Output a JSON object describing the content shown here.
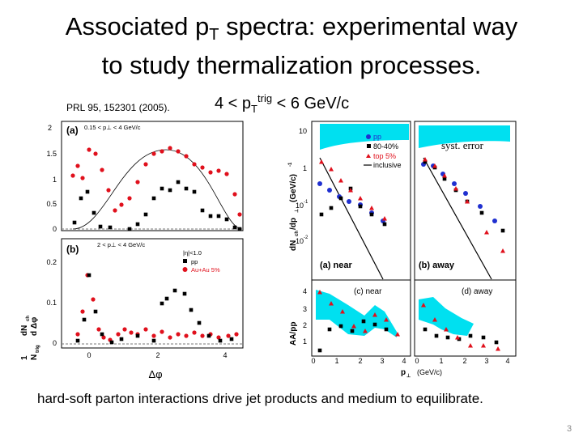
{
  "slide": {
    "title_line1_pre": "Associated p",
    "title_sub": "T",
    "title_line1_post": " spectra: experimental way",
    "title_line2": "to study thermalization processes.",
    "citation": "PRL 95, 152301 (2005).",
    "range_pre": "4 < p",
    "range_sub": "T",
    "range_sup": "trig",
    "range_post": " < 6 GeV/c",
    "caption": "hard-soft parton interactions drive jet products and medium to equilibrate.",
    "page_number": "3"
  },
  "colors": {
    "pp": "#000000",
    "auau": "#e0101c",
    "central": "#e0101c",
    "peripheral": "#000000",
    "pp_blue": "#2030d0",
    "syst_band": "#00e0f0"
  },
  "left_figure": {
    "y_axis_label_top": "dN",
    "y_axis_label_sub": "ch",
    "y_axis_label_den": "d Δφ",
    "y_axis_label_prefix_num": "1",
    "y_axis_label_prefix_den": "N",
    "y_axis_label_prefix_sub": "trig",
    "x_axis_label": "Δφ",
    "x_ticks": [
      "0",
      "2",
      "4"
    ],
    "panel_a": {
      "label": "(a)",
      "cut": "0.15 < p⊥ < 4 GeV/c",
      "y_ticks": [
        "2",
        "1.5",
        "1",
        "0.5",
        "0"
      ]
    },
    "panel_b": {
      "label": "(b)",
      "cut": "2 < p⊥ < 4 GeV/c",
      "eta_cut": "|η|<1.0",
      "legend_pp": "pp",
      "legend_auau": "Au+Au 5%",
      "y_ticks": [
        "0.2",
        "0.1",
        "0"
      ]
    }
  },
  "right_figure": {
    "y_axis_upper": "dN",
    "y_axis_upper_sub": "ch",
    "y_axis_upper_rest": "/dp",
    "y_axis_upper_rest_sub": "⊥",
    "y_axis_upper_units": "(GeV/c)",
    "y_axis_upper_units_sup": "-1",
    "y_axis_lower": "AA/pp",
    "x_axis_label_pre": "p",
    "x_axis_label_sub": "⊥",
    "x_axis_label_post": "(GeV/c)",
    "x_ticks_left": [
      "0",
      "1",
      "2",
      "3",
      "4"
    ],
    "x_ticks_right": [
      "0",
      "1",
      "2",
      "3",
      "4"
    ],
    "upper_y_ticks": [
      "10",
      "1",
      "10",
      "10"
    ],
    "upper_y_tick_sups": [
      "",
      "",
      "-1",
      "-2"
    ],
    "lower_y_ticks": [
      "4",
      "3",
      "2",
      "1"
    ],
    "legend": {
      "pp": "pp",
      "peripheral": "80-40%",
      "central": "top 5%",
      "inclusive": "inclusive"
    },
    "syst_label": "syst. error",
    "panel_a": "(a) near",
    "panel_b": "(b) away",
    "panel_c": "(c) near",
    "panel_d": "(d) away"
  }
}
